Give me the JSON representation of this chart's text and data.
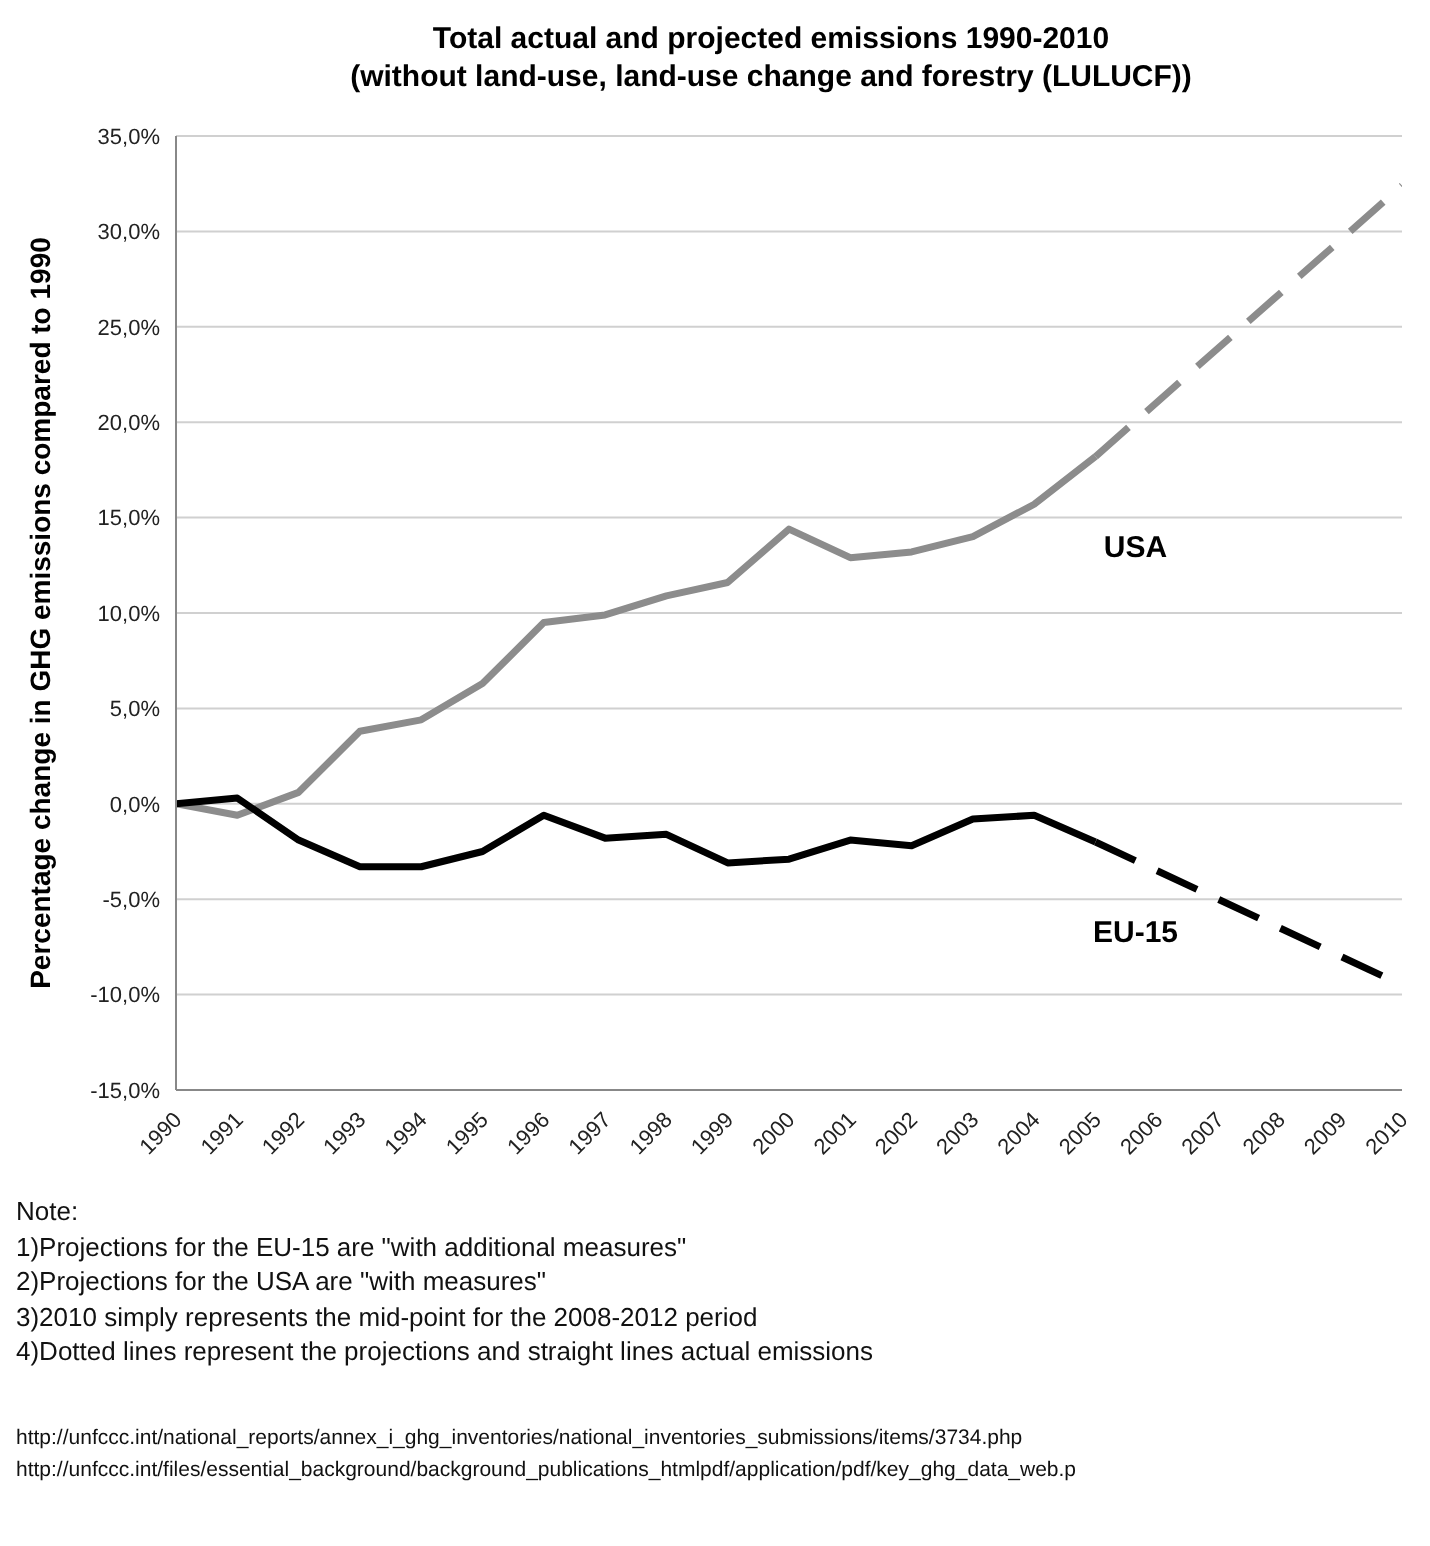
{
  "chart_data": {
    "type": "line",
    "title": "Total actual and projected emissions 1990-2010",
    "subtitle": "(without land-use, land-use change and forestry (LULUCF))",
    "ylabel": "Percentage change in GHG emissions compared to 1990",
    "categories": [
      "1990",
      "1991",
      "1992",
      "1993",
      "1994",
      "1995",
      "1996",
      "1997",
      "1998",
      "1999",
      "2000",
      "2001",
      "2002",
      "2003",
      "2004",
      "2005",
      "2006",
      "2007",
      "2008",
      "2009",
      "2010"
    ],
    "series": [
      {
        "name": "USA",
        "color": "#8c8c8c",
        "line_style": "solid",
        "values": [
          0,
          -0.6,
          0.6,
          3.8,
          4.4,
          6.3,
          9.5,
          9.9,
          10.9,
          11.6,
          14.4,
          12.9,
          13.2,
          14.0,
          15.7,
          18.2,
          null,
          null,
          null,
          null,
          null
        ]
      },
      {
        "color": "#8c8c8c",
        "line_style": "dashed",
        "values": [
          null,
          null,
          null,
          null,
          null,
          null,
          null,
          null,
          null,
          null,
          null,
          null,
          null,
          null,
          null,
          18.2,
          null,
          null,
          null,
          null,
          32.4
        ]
      },
      {
        "name": "EU-15",
        "color": "#000000",
        "line_style": "solid",
        "values": [
          0,
          0.3,
          -1.9,
          -3.3,
          -3.3,
          -2.5,
          -0.6,
          -1.8,
          -1.6,
          -3.1,
          -2.9,
          -1.9,
          -2.2,
          -0.8,
          -0.6,
          -2.0,
          null,
          null,
          null,
          null,
          null
        ]
      },
      {
        "color": "#000000",
        "line_style": "dashed",
        "values": [
          null,
          null,
          null,
          null,
          null,
          null,
          null,
          null,
          null,
          null,
          null,
          null,
          null,
          null,
          null,
          -2.0,
          null,
          null,
          null,
          null,
          -9.5
        ]
      }
    ],
    "ylim": [
      -15,
      35
    ],
    "yticks": [
      {
        "value": -15,
        "label": "-15,0%"
      },
      {
        "value": -10,
        "label": "-10,0%"
      },
      {
        "value": -5,
        "label": "-5,0%"
      },
      {
        "value": 0,
        "label": "0,0%"
      },
      {
        "value": 5,
        "label": "5,0%"
      },
      {
        "value": 10,
        "label": "10,0%"
      },
      {
        "value": 15,
        "label": "15,0%"
      },
      {
        "value": 20,
        "label": "20,0%"
      },
      {
        "value": 25,
        "label": "25,0%"
      },
      {
        "value": 30,
        "label": "30,0%"
      },
      {
        "value": 35,
        "label": "35,0%"
      }
    ],
    "grid": "y",
    "legend": false,
    "marker": "none",
    "annotations": [
      "Note:",
      "1)Projections for the EU-15 are \"with additional measures\"",
      "2)Projections for the USA are \"with measures\"",
      "3)2010 simply represents the mid-point for the 2008-2012 period",
      "4)Dotted lines represent the projections and straight lines actual emissions",
      "http://unfccc.int/national_reports/annex_i_ghg_inventories/national_inventories_submissions/items/3734.php",
      "http://unfccc.int/files/essential_background/background_publications_htmlpdf/application/pdf/key_ghg_data_web.p"
    ]
  }
}
